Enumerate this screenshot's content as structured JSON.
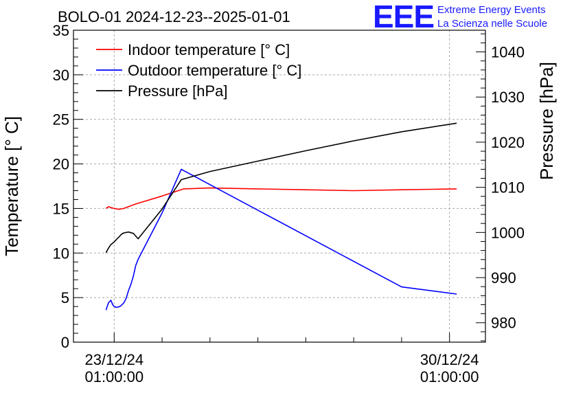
{
  "chart_data": {
    "type": "line",
    "title": "BOLO-01 2024-12-23--2025-01-01",
    "brand": {
      "logo_text": "EEE",
      "line1": "Extreme Energy Events",
      "line2": "La Scienza nelle Scuole",
      "color": "#1a1aff"
    },
    "xaxis": {
      "ticks": [
        {
          "day": 0,
          "line1": "23/12/24",
          "line2": "01:00:00"
        },
        {
          "day": 7,
          "line1": "30/12/24",
          "line2": "01:00:00"
        }
      ],
      "range_days": [
        -0.85,
        7.75
      ]
    },
    "y_left": {
      "label": "Temperature [° C]",
      "ylim": [
        0,
        35
      ],
      "ticks": [
        0,
        5,
        10,
        15,
        20,
        25,
        30,
        35
      ]
    },
    "y_right": {
      "label": "Pressure [hPa]",
      "ylim": [
        975.7,
        1044.8
      ],
      "ticks": [
        980,
        990,
        1000,
        1010,
        1020,
        1030,
        1040
      ]
    },
    "grid": true,
    "legend_position": "top-left",
    "series": [
      {
        "name": "Indoor temperature [° C]",
        "axis": "left",
        "color": "#ff0000",
        "x_days": [
          -0.17,
          -0.12,
          -0.07,
          0.0,
          0.1,
          0.2,
          0.3,
          0.45,
          1.0,
          1.45,
          2.0,
          3.0,
          4.0,
          5.0,
          6.0,
          7.15
        ],
        "y": [
          15.0,
          15.2,
          15.1,
          15.0,
          14.9,
          15.0,
          15.2,
          15.5,
          16.4,
          17.2,
          17.3,
          17.2,
          17.1,
          17.0,
          17.1,
          17.2
        ]
      },
      {
        "name": "Outdoor temperature [° C]",
        "axis": "left",
        "color": "#0000ff",
        "x_days": [
          -0.17,
          -0.12,
          -0.07,
          -0.03,
          0.0,
          0.05,
          0.12,
          0.2,
          0.25,
          0.3,
          0.35,
          0.4,
          0.45,
          0.5,
          1.0,
          1.4,
          6.0,
          7.15
        ],
        "y": [
          3.6,
          4.4,
          4.7,
          4.2,
          4.0,
          3.9,
          4.0,
          4.4,
          4.9,
          5.8,
          6.5,
          7.4,
          8.6,
          9.3,
          14.5,
          19.4,
          6.2,
          5.4
        ]
      },
      {
        "name": "Pressure [hPa]",
        "axis": "right",
        "color": "#000000",
        "x_days": [
          -0.17,
          -0.12,
          -0.07,
          0.0,
          0.05,
          0.1,
          0.15,
          0.2,
          0.3,
          0.4,
          0.5,
          1.0,
          1.4,
          2.0,
          3.0,
          4.0,
          5.0,
          6.0,
          7.15
        ],
        "y": [
          995.5,
          996.5,
          997.3,
          997.9,
          998.5,
          999.0,
          999.6,
          999.9,
          1000.1,
          999.8,
          998.6,
          1005.2,
          1011.7,
          1013.5,
          1015.8,
          1018.1,
          1020.3,
          1022.3,
          1024.2
        ]
      }
    ]
  }
}
